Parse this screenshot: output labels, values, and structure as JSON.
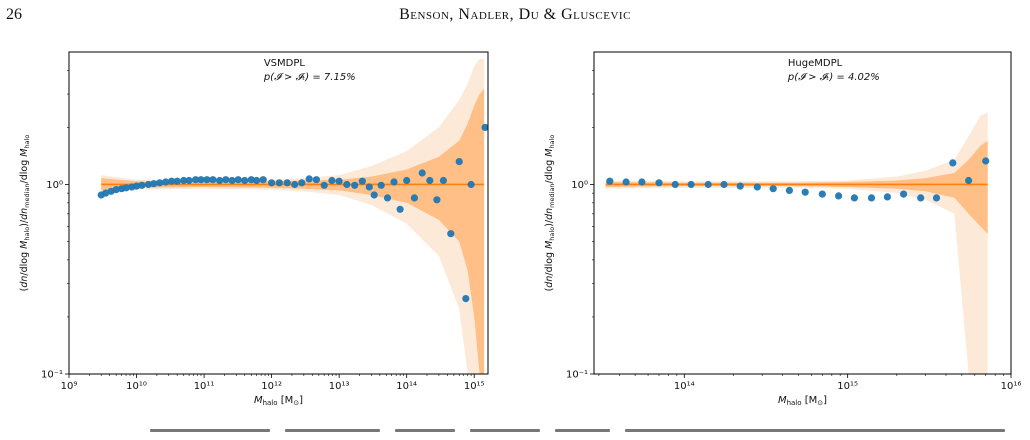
{
  "page": {
    "number": "26",
    "running_head": "Benson, Nadler, Du & Gluscevic"
  },
  "chart_data": [
    {
      "type": "scatter",
      "title": "VSMDPL",
      "subtitle": "p(𝓘 > 𝓘ₜ) = 7.15%",
      "xlabel": "M_halo [M_⊙]",
      "ylabel": "(dn/dlog M_halo)/dn_median/dlog M_halo",
      "xscale": "log",
      "yscale": "log",
      "xlim": [
        1000000000.0,
        1600000000000000.0
      ],
      "ylim": [
        0.1,
        5
      ],
      "xticks": [
        {
          "value": 1000000000.0,
          "label": "10⁹"
        },
        {
          "value": 10000000000.0,
          "label": "10¹⁰"
        },
        {
          "value": 100000000000.0,
          "label": "10¹¹"
        },
        {
          "value": 1000000000000.0,
          "label": "10¹²"
        },
        {
          "value": 10000000000000.0,
          "label": "10¹³"
        },
        {
          "value": 100000000000000.0,
          "label": "10¹⁴"
        },
        {
          "value": 1000000000000000.0,
          "label": "10¹⁵"
        }
      ],
      "yticks": [
        {
          "value": 0.1,
          "label": "10⁻¹"
        },
        {
          "value": 1,
          "label": "10⁰"
        }
      ],
      "median_line": 1.0,
      "colors": {
        "points": "#1f77b4",
        "line": "#ff7f0e",
        "band_inner": "#ffbf86",
        "band_outer": "#fde9d8"
      },
      "band_x": [
        3000000000.0,
        10000000000.0,
        100000000000.0,
        1000000000000.0,
        3000000000000.0,
        10000000000000.0,
        30000000000000.0,
        100000000000000.0,
        300000000000000.0,
        600000000000000.0,
        800000000000000.0,
        1000000000000000.0,
        1200000000000000.0,
        1400000000000000.0
      ],
      "band_inner_hi": [
        1.08,
        1.04,
        1.03,
        1.04,
        1.05,
        1.06,
        1.1,
        1.2,
        1.4,
        1.7,
        2.1,
        2.6,
        3.0,
        3.2
      ],
      "band_inner_lo": [
        0.93,
        0.96,
        0.97,
        0.96,
        0.95,
        0.93,
        0.88,
        0.8,
        0.65,
        0.5,
        0.35,
        0.2,
        0.1,
        0.1
      ],
      "band_outer_hi": [
        1.12,
        1.06,
        1.05,
        1.06,
        1.08,
        1.12,
        1.25,
        1.5,
        2.0,
        2.8,
        3.4,
        4.2,
        4.6,
        4.6
      ],
      "band_outer_lo": [
        0.88,
        0.94,
        0.95,
        0.94,
        0.92,
        0.88,
        0.78,
        0.62,
        0.42,
        0.22,
        0.1,
        0.1,
        0.1,
        0.1
      ],
      "points": [
        {
          "x": 3000000000.0,
          "y": 0.88
        },
        {
          "x": 3500000000.0,
          "y": 0.9
        },
        {
          "x": 4200000000.0,
          "y": 0.92
        },
        {
          "x": 5000000000.0,
          "y": 0.94
        },
        {
          "x": 6000000000.0,
          "y": 0.95
        },
        {
          "x": 7000000000.0,
          "y": 0.96
        },
        {
          "x": 8500000000.0,
          "y": 0.97
        },
        {
          "x": 10000000000.0,
          "y": 0.98
        },
        {
          "x": 12000000000.0,
          "y": 0.99
        },
        {
          "x": 15000000000.0,
          "y": 1.0
        },
        {
          "x": 18000000000.0,
          "y": 1.01
        },
        {
          "x": 22000000000.0,
          "y": 1.02
        },
        {
          "x": 27000000000.0,
          "y": 1.03
        },
        {
          "x": 33000000000.0,
          "y": 1.04
        },
        {
          "x": 40000000000.0,
          "y": 1.04
        },
        {
          "x": 50000000000.0,
          "y": 1.05
        },
        {
          "x": 60000000000.0,
          "y": 1.05
        },
        {
          "x": 75000000000.0,
          "y": 1.06
        },
        {
          "x": 90000000000.0,
          "y": 1.06
        },
        {
          "x": 110000000000.0,
          "y": 1.06
        },
        {
          "x": 135000000000.0,
          "y": 1.06
        },
        {
          "x": 170000000000.0,
          "y": 1.05
        },
        {
          "x": 210000000000.0,
          "y": 1.06
        },
        {
          "x": 260000000000.0,
          "y": 1.05
        },
        {
          "x": 320000000000.0,
          "y": 1.06
        },
        {
          "x": 400000000000.0,
          "y": 1.05
        },
        {
          "x": 500000000000.0,
          "y": 1.06
        },
        {
          "x": 600000000000.0,
          "y": 1.05
        },
        {
          "x": 750000000000.0,
          "y": 1.06
        },
        {
          "x": 1000000000000.0,
          "y": 1.02
        },
        {
          "x": 1300000000000.0,
          "y": 1.02
        },
        {
          "x": 1700000000000.0,
          "y": 1.02
        },
        {
          "x": 2200000000000.0,
          "y": 1.0
        },
        {
          "x": 2800000000000.0,
          "y": 1.02
        },
        {
          "x": 3600000000000.0,
          "y": 1.07
        },
        {
          "x": 4600000000000.0,
          "y": 1.06
        },
        {
          "x": 6000000000000.0,
          "y": 0.99
        },
        {
          "x": 7800000000000.0,
          "y": 1.05
        },
        {
          "x": 10000000000000.0,
          "y": 1.04
        },
        {
          "x": 13000000000000.0,
          "y": 1.0
        },
        {
          "x": 17000000000000.0,
          "y": 0.99
        },
        {
          "x": 22000000000000.0,
          "y": 1.04
        },
        {
          "x": 28000000000000.0,
          "y": 0.97
        },
        {
          "x": 33000000000000.0,
          "y": 0.88
        },
        {
          "x": 42000000000000.0,
          "y": 0.99
        },
        {
          "x": 52000000000000.0,
          "y": 0.85
        },
        {
          "x": 65000000000000.0,
          "y": 1.03
        },
        {
          "x": 80000000000000.0,
          "y": 0.74
        },
        {
          "x": 100000000000000.0,
          "y": 1.05
        },
        {
          "x": 130000000000000.0,
          "y": 0.85
        },
        {
          "x": 170000000000000.0,
          "y": 1.15
        },
        {
          "x": 220000000000000.0,
          "y": 1.05
        },
        {
          "x": 280000000000000.0,
          "y": 0.83
        },
        {
          "x": 350000000000000.0,
          "y": 1.05
        },
        {
          "x": 450000000000000.0,
          "y": 0.55
        },
        {
          "x": 600000000000000.0,
          "y": 1.32
        },
        {
          "x": 750000000000000.0,
          "y": 0.25
        },
        {
          "x": 900000000000000.0,
          "y": 1.0
        },
        {
          "x": 1450000000000000.0,
          "y": 2.0
        }
      ]
    },
    {
      "type": "scatter",
      "title": "HugeMDPL",
      "subtitle": "p(𝓘 > 𝓘ₜ) = 4.02%",
      "xlabel": "M_halo [M_⊙]",
      "ylabel": "(dn/dlog M_halo)/dn_median/dlog M_halo",
      "xscale": "log",
      "yscale": "log",
      "xlim": [
        28000000000000.0,
        1e+16
      ],
      "ylim": [
        0.1,
        5
      ],
      "xticks": [
        {
          "value": 100000000000000.0,
          "label": "10¹⁴"
        },
        {
          "value": 1000000000000000.0,
          "label": "10¹⁵"
        },
        {
          "value": 1e+16,
          "label": "10¹⁶"
        }
      ],
      "yticks": [
        {
          "value": 0.1,
          "label": "10⁻¹"
        },
        {
          "value": 1,
          "label": "10⁰"
        }
      ],
      "median_line": 1.0,
      "colors": {
        "points": "#1f77b4",
        "line": "#ff7f0e",
        "band_inner": "#ffbf86",
        "band_outer": "#fde9d8"
      },
      "band_x": [
        33000000000000.0,
        100000000000000.0,
        500000000000000.0,
        1000000000000000.0,
        2000000000000000.0,
        3000000000000000.0,
        4500000000000000.0,
        5500000000000000.0,
        6500000000000000.0,
        7200000000000000.0
      ],
      "band_inner_hi": [
        1.03,
        1.02,
        1.02,
        1.03,
        1.05,
        1.08,
        1.15,
        1.35,
        1.6,
        1.7
      ],
      "band_inner_lo": [
        0.97,
        0.98,
        0.98,
        0.97,
        0.95,
        0.92,
        0.85,
        0.7,
        0.6,
        0.55
      ],
      "band_outer_hi": [
        1.05,
        1.04,
        1.04,
        1.05,
        1.1,
        1.18,
        1.35,
        1.8,
        2.3,
        2.4
      ],
      "band_outer_lo": [
        0.95,
        0.96,
        0.96,
        0.95,
        0.9,
        0.83,
        0.7,
        0.1,
        0.1,
        0.1
      ],
      "points": [
        {
          "x": 35000000000000.0,
          "y": 1.04
        },
        {
          "x": 44000000000000.0,
          "y": 1.03
        },
        {
          "x": 55000000000000.0,
          "y": 1.03
        },
        {
          "x": 70000000000000.0,
          "y": 1.02
        },
        {
          "x": 88000000000000.0,
          "y": 1.0
        },
        {
          "x": 110000000000000.0,
          "y": 1.0
        },
        {
          "x": 140000000000000.0,
          "y": 1.0
        },
        {
          "x": 175000000000000.0,
          "y": 1.0
        },
        {
          "x": 220000000000000.0,
          "y": 0.98
        },
        {
          "x": 280000000000000.0,
          "y": 0.97
        },
        {
          "x": 350000000000000.0,
          "y": 0.95
        },
        {
          "x": 440000000000000.0,
          "y": 0.93
        },
        {
          "x": 550000000000000.0,
          "y": 0.91
        },
        {
          "x": 700000000000000.0,
          "y": 0.89
        },
        {
          "x": 880000000000000.0,
          "y": 0.87
        },
        {
          "x": 1100000000000000.0,
          "y": 0.85
        },
        {
          "x": 1400000000000000.0,
          "y": 0.85
        },
        {
          "x": 1750000000000000.0,
          "y": 0.86
        },
        {
          "x": 2200000000000000.0,
          "y": 0.89
        },
        {
          "x": 2800000000000000.0,
          "y": 0.85
        },
        {
          "x": 3500000000000000.0,
          "y": 0.85
        },
        {
          "x": 4400000000000000.0,
          "y": 1.3
        },
        {
          "x": 5500000000000000.0,
          "y": 1.05
        },
        {
          "x": 7000000000000000.0,
          "y": 1.33
        }
      ]
    }
  ]
}
